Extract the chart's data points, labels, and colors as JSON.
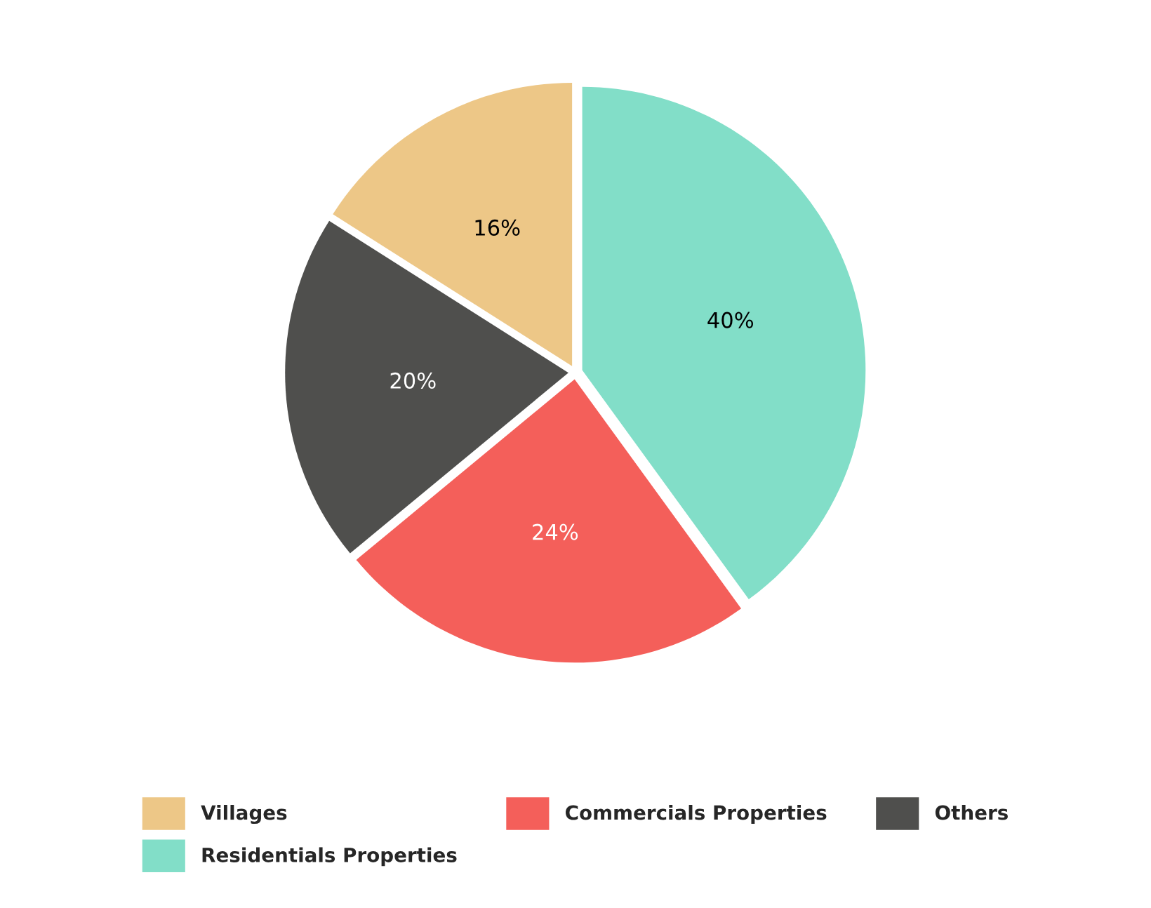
{
  "chart_data": {
    "type": "pie",
    "categories": [
      "Villages",
      "Residentials Properties",
      "Commercials Properties",
      "Others"
    ],
    "values": [
      16,
      40,
      24,
      20
    ],
    "colors": [
      "#edc787",
      "#82dec8",
      "#f45f5a",
      "#4f4f4d"
    ],
    "value_labels": [
      "16%",
      "40%",
      "24%",
      "20%"
    ],
    "legend": "bottom"
  }
}
